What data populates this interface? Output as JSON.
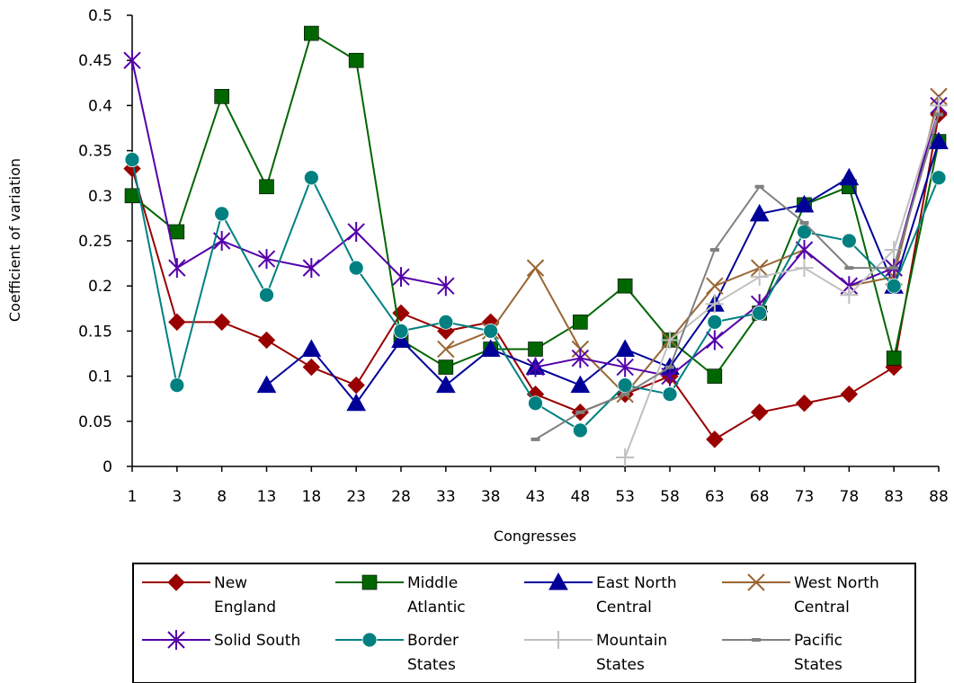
{
  "chart_data": {
    "type": "line",
    "title": "",
    "xlabel": "Congresses",
    "ylabel": "Coefficient of variation",
    "categories": [
      "1",
      "3",
      "8",
      "13",
      "18",
      "23",
      "28",
      "33",
      "38",
      "43",
      "48",
      "53",
      "58",
      "63",
      "68",
      "73",
      "78",
      "83",
      "88"
    ],
    "ylim": [
      0,
      0.5
    ],
    "yticks": [
      "0",
      "0.05",
      "0.1",
      "0.15",
      "0.2",
      "0.25",
      "0.3",
      "0.35",
      "0.4",
      "0.45",
      "0.5"
    ],
    "grid": false,
    "legend_position": "bottom",
    "series": [
      {
        "name_line1": "New",
        "name_line2": "England",
        "color": "#990000",
        "marker": "diamond",
        "values": [
          0.33,
          0.16,
          0.16,
          0.14,
          0.11,
          0.09,
          0.17,
          0.15,
          0.16,
          0.08,
          0.06,
          0.08,
          0.1,
          0.03,
          0.06,
          0.07,
          0.08,
          0.11,
          0.39
        ]
      },
      {
        "name_line1": "Middle",
        "name_line2": "Atlantic",
        "color": "#006600",
        "marker": "square",
        "values": [
          0.3,
          0.26,
          0.41,
          0.31,
          0.48,
          0.45,
          0.14,
          0.11,
          0.13,
          0.13,
          0.16,
          0.2,
          0.14,
          0.1,
          0.17,
          0.29,
          0.31,
          0.12,
          0.36
        ]
      },
      {
        "name_line1": "East North",
        "name_line2": "Central",
        "color": "#000099",
        "marker": "triangle",
        "values": [
          null,
          null,
          null,
          0.09,
          0.13,
          0.07,
          0.14,
          0.09,
          0.13,
          0.11,
          0.09,
          0.13,
          0.11,
          0.18,
          0.28,
          0.29,
          0.32,
          0.2,
          0.36
        ]
      },
      {
        "name_line1": "West North",
        "name_line2": "Central",
        "color": "#996633",
        "marker": "x",
        "values": [
          null,
          null,
          null,
          null,
          null,
          null,
          null,
          0.13,
          0.15,
          0.22,
          0.13,
          0.08,
          0.14,
          0.2,
          0.22,
          0.24,
          0.2,
          0.21,
          0.41
        ]
      },
      {
        "name_line1": "Solid South",
        "name_line2": "",
        "color": "#5500aa",
        "marker": "star",
        "values": [
          0.45,
          0.22,
          0.25,
          0.23,
          0.22,
          0.26,
          0.21,
          0.2,
          null,
          0.11,
          0.12,
          0.11,
          0.1,
          0.14,
          0.18,
          0.24,
          0.2,
          0.22,
          0.4
        ]
      },
      {
        "name_line1": "Border",
        "name_line2": "States",
        "color": "#008080",
        "marker": "circle",
        "values": [
          0.34,
          0.09,
          0.28,
          0.19,
          0.32,
          0.22,
          0.15,
          0.16,
          0.15,
          0.07,
          0.04,
          0.09,
          0.08,
          0.16,
          0.17,
          0.26,
          0.25,
          0.2,
          0.32
        ]
      },
      {
        "name_line1": "Mountain",
        "name_line2": "States",
        "color": "#c0c0c0",
        "marker": "plus",
        "values": [
          null,
          null,
          null,
          null,
          null,
          null,
          null,
          null,
          null,
          null,
          null,
          0.01,
          0.14,
          0.18,
          0.21,
          0.22,
          0.19,
          0.24,
          0.4
        ]
      },
      {
        "name_line1": "Pacific",
        "name_line2": "States",
        "color": "#808080",
        "marker": "dash",
        "values": [
          null,
          null,
          null,
          null,
          null,
          null,
          null,
          null,
          null,
          0.03,
          0.06,
          0.08,
          0.11,
          0.24,
          0.31,
          0.27,
          0.22,
          0.22,
          0.39
        ]
      }
    ]
  }
}
